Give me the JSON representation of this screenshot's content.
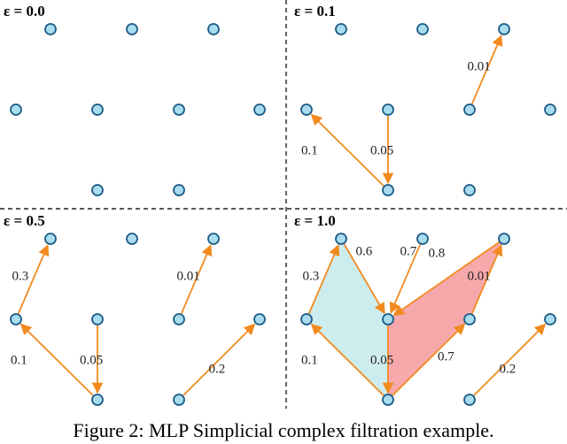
{
  "caption": "Figure 2: MLP Simplicial complex filtration example.",
  "colors": {
    "node_fill": "#a9dcee",
    "node_stroke": "#1c5b86",
    "edge": "#f28a1e",
    "simplex_blue": "#cdeced",
    "simplex_red": "#f7a8ab"
  },
  "panels": [
    {
      "id": "p00",
      "label": "ε = 0.0",
      "edges": [],
      "simplices": []
    },
    {
      "id": "p01",
      "label": "ε = 0.1",
      "edges": [
        {
          "from": "bm",
          "to": "ml",
          "weight": "0.1"
        },
        {
          "from": "mm",
          "to": "bm",
          "weight": "0.05"
        },
        {
          "from": "mr",
          "to": "tr",
          "weight": "0.01"
        }
      ],
      "simplices": []
    },
    {
      "id": "p05",
      "label": "ε = 0.5",
      "edges": [
        {
          "from": "ml",
          "to": "tl",
          "weight": "0.3"
        },
        {
          "from": "bm",
          "to": "ml",
          "weight": "0.1"
        },
        {
          "from": "mm",
          "to": "bm",
          "weight": "0.05"
        },
        {
          "from": "mr",
          "to": "tr",
          "weight": "0.01"
        },
        {
          "from": "bl",
          "to": "mf",
          "weight": "0.2"
        }
      ],
      "simplices": []
    },
    {
      "id": "p10",
      "label": "ε = 1.0",
      "edges": [
        {
          "from": "ml",
          "to": "tl",
          "weight": "0.3"
        },
        {
          "from": "tl",
          "to": "mm",
          "weight": "0.6"
        },
        {
          "from": "tm",
          "to": "mm",
          "weight": "0.7"
        },
        {
          "from": "tr",
          "to": "mm",
          "weight": "0.8"
        },
        {
          "from": "mr",
          "to": "tr",
          "weight": "0.01"
        },
        {
          "from": "bm",
          "to": "mr",
          "weight": "0.7"
        },
        {
          "from": "bm",
          "to": "ml",
          "weight": "0.1"
        },
        {
          "from": "mm",
          "to": "bm",
          "weight": "0.05"
        },
        {
          "from": "bl",
          "to": "mf",
          "weight": "0.2"
        }
      ],
      "simplices": [
        {
          "nodes": [
            "ml",
            "tl",
            "mm",
            "bm"
          ],
          "color": "#cdeced"
        },
        {
          "nodes": [
            "mm",
            "tr",
            "mr",
            "bm"
          ],
          "color": "#f7a8ab"
        }
      ]
    }
  ]
}
